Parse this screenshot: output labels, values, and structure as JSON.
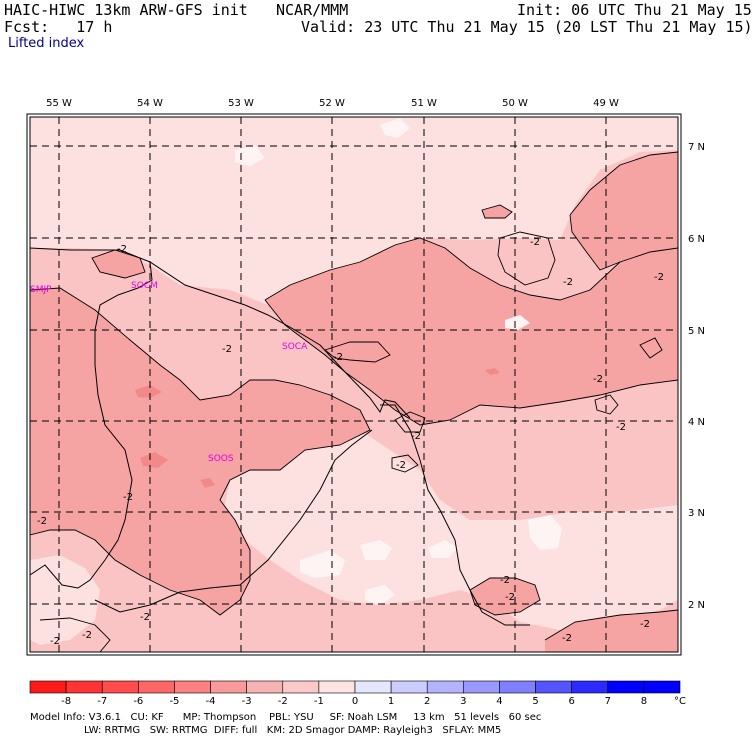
{
  "header": {
    "model": "HAIC-HIWC 13km ARW-GFS init",
    "org": "NCAR/MMM",
    "init": "Init: 06 UTC Thu 21 May 15",
    "fcst": "Fcst:   17 h",
    "valid": "Valid: 23 UTC Thu 21 May 15 (20 LST Thu 21 May 15)",
    "field": "Lifted index"
  },
  "map": {
    "longitudes": [
      "55 W",
      "54 W",
      "53 W",
      "52 W",
      "51 W",
      "50 W",
      "49 W"
    ],
    "latitudes": [
      "7 N",
      "6 N",
      "5 N",
      "4 N",
      "3 N",
      "2 N"
    ],
    "stations": [
      "SMJP",
      "SOCM",
      "SOCA",
      "SOOS"
    ],
    "contour_label": "-2",
    "colors": {
      "fill_neg1_0": "#fde0e0",
      "fill_neg2_neg1": "#fbc4c4",
      "fill_neg3_neg2": "#f6a3a3",
      "lowest_light": "#fff2f2",
      "station": "#e600e6"
    }
  },
  "colorbar": {
    "ticks": [
      "-8",
      "-7",
      "-6",
      "-5",
      "-4",
      "-3",
      "-2",
      "-1",
      "0",
      "1",
      "2",
      "3",
      "4",
      "5",
      "6",
      "7",
      "8"
    ],
    "unit": "°C",
    "colors": [
      "#ff1a1a",
      "#ff3333",
      "#ff4d4d",
      "#ff6666",
      "#ff8080",
      "#f99a9a",
      "#f7b3b3",
      "#fbc9c9",
      "#fde3e3",
      "#e6e6ff",
      "#ccccff",
      "#b3b3ff",
      "#9999ff",
      "#7f7fff",
      "#5555ff",
      "#2b2bff",
      "#0000ff"
    ]
  },
  "footer": {
    "line1": "Model Info: V3.6.1   CU: KF      MP: Thompson    PBL: YSU     SF: Noah LSM     13 km   51 levels   60 sec",
    "line2": "LW: RRTMG   SW: RRTMG  DIFF: full   KM: 2D Smagor DAMP: Rayleigh3   SFLAY: MM5"
  }
}
